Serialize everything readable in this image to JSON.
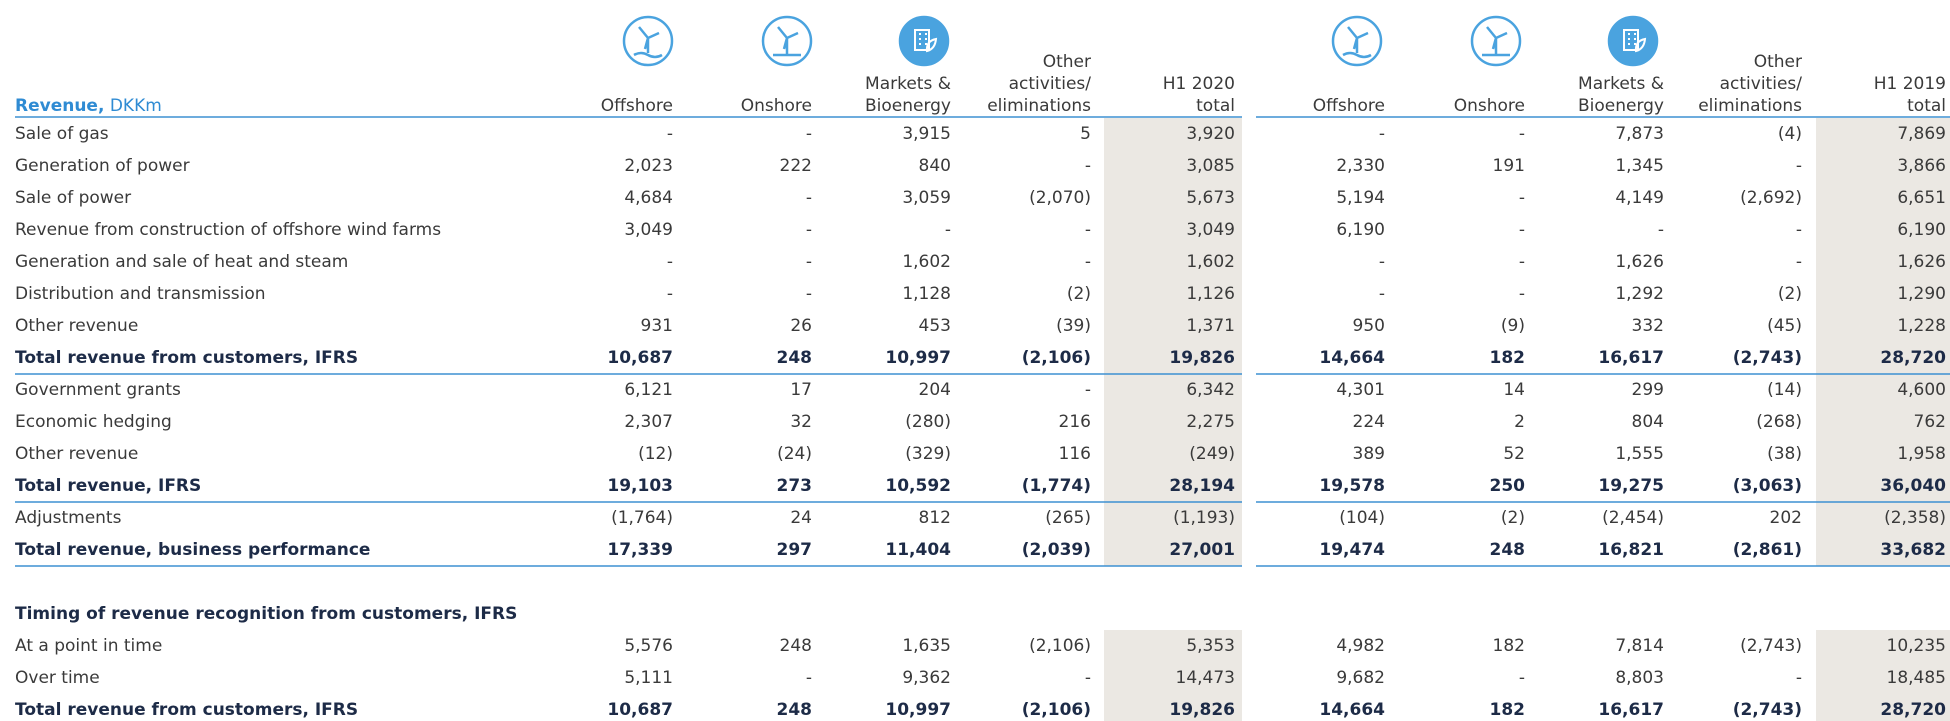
{
  "header": {
    "title": "Revenue,",
    "unit": "DKKm",
    "columns": [
      [
        "Offshore"
      ],
      [
        "Onshore"
      ],
      [
        "Markets &",
        "Bioenergy"
      ],
      [
        "Other",
        "activities/",
        "eliminations"
      ],
      [
        "H1 2020",
        "total"
      ],
      [
        "Offshore"
      ],
      [
        "Onshore"
      ],
      [
        "Markets &",
        "Bioenergy"
      ],
      [
        "Other",
        "activities/",
        "eliminations"
      ],
      [
        "H1 2019",
        "total"
      ]
    ]
  },
  "table": {
    "rows": [
      {
        "label": "Sale of gas",
        "values": [
          "-",
          "-",
          "3,915",
          "5",
          "3,920",
          "-",
          "-",
          "7,873",
          "(4)",
          "7,869"
        ]
      },
      {
        "label": "Generation of power",
        "values": [
          "2,023",
          "222",
          "840",
          "-",
          "3,085",
          "2,330",
          "191",
          "1,345",
          "-",
          "3,866"
        ]
      },
      {
        "label": "Sale of power",
        "values": [
          "4,684",
          "-",
          "3,059",
          "(2,070)",
          "5,673",
          "5,194",
          "-",
          "4,149",
          "(2,692)",
          "6,651"
        ]
      },
      {
        "label": "Revenue from construction of offshore wind farms",
        "values": [
          "3,049",
          "-",
          "-",
          "-",
          "3,049",
          "6,190",
          "-",
          "-",
          "-",
          "6,190"
        ]
      },
      {
        "label": "Generation and sale of heat and steam",
        "values": [
          "-",
          "-",
          "1,602",
          "-",
          "1,602",
          "-",
          "-",
          "1,626",
          "-",
          "1,626"
        ]
      },
      {
        "label": "Distribution and transmission",
        "values": [
          "-",
          "-",
          "1,128",
          "(2)",
          "1,126",
          "-",
          "-",
          "1,292",
          "(2)",
          "1,290"
        ]
      },
      {
        "label": "Other revenue",
        "values": [
          "931",
          "26",
          "453",
          "(39)",
          "1,371",
          "950",
          "(9)",
          "332",
          "(45)",
          "1,228"
        ]
      },
      {
        "label": "Total revenue from customers, IFRS",
        "bold": true,
        "values": [
          "10,687",
          "248",
          "10,997",
          "(2,106)",
          "19,826",
          "14,664",
          "182",
          "16,617",
          "(2,743)",
          "28,720"
        ]
      },
      {
        "label": "Government grants",
        "values": [
          "6,121",
          "17",
          "204",
          "-",
          "6,342",
          "4,301",
          "14",
          "299",
          "(14)",
          "4,600"
        ]
      },
      {
        "label": "Economic hedging",
        "values": [
          "2,307",
          "32",
          "(280)",
          "216",
          "2,275",
          "224",
          "2",
          "804",
          "(268)",
          "762"
        ]
      },
      {
        "label": "Other revenue",
        "values": [
          "(12)",
          "(24)",
          "(329)",
          "116",
          "(249)",
          "389",
          "52",
          "1,555",
          "(38)",
          "1,958"
        ]
      },
      {
        "label": "Total revenue, IFRS",
        "bold": true,
        "values": [
          "19,103",
          "273",
          "10,592",
          "(1,774)",
          "28,194",
          "19,578",
          "250",
          "19,275",
          "(3,063)",
          "36,040"
        ]
      },
      {
        "label": "Adjustments",
        "values": [
          "(1,764)",
          "24",
          "812",
          "(265)",
          "(1,193)",
          "(104)",
          "(2)",
          "(2,454)",
          "202",
          "(2,358)"
        ]
      },
      {
        "label": "Total revenue, business performance",
        "bold": true,
        "values": [
          "17,339",
          "297",
          "11,404",
          "(2,039)",
          "27,001",
          "19,474",
          "248",
          "16,821",
          "(2,861)",
          "33,682"
        ]
      },
      {
        "label": "Timing of revenue recognition from customers, IFRS",
        "bold": true
      },
      {
        "label": "At a point in time",
        "values": [
          "5,576",
          "248",
          "1,635",
          "(2,106)",
          "5,353",
          "4,982",
          "182",
          "7,814",
          "(2,743)",
          "10,235"
        ]
      },
      {
        "label": "Over time",
        "values": [
          "5,111",
          "-",
          "9,362",
          "-",
          "14,473",
          "9,682",
          "-",
          "8,803",
          "-",
          "18,485"
        ]
      },
      {
        "label": "Total revenue from customers, IFRS",
        "bold": true,
        "values": [
          "10,687",
          "248",
          "10,997",
          "(2,106)",
          "19,826",
          "14,664",
          "182",
          "16,617",
          "(2,743)",
          "28,720"
        ]
      }
    ]
  }
}
